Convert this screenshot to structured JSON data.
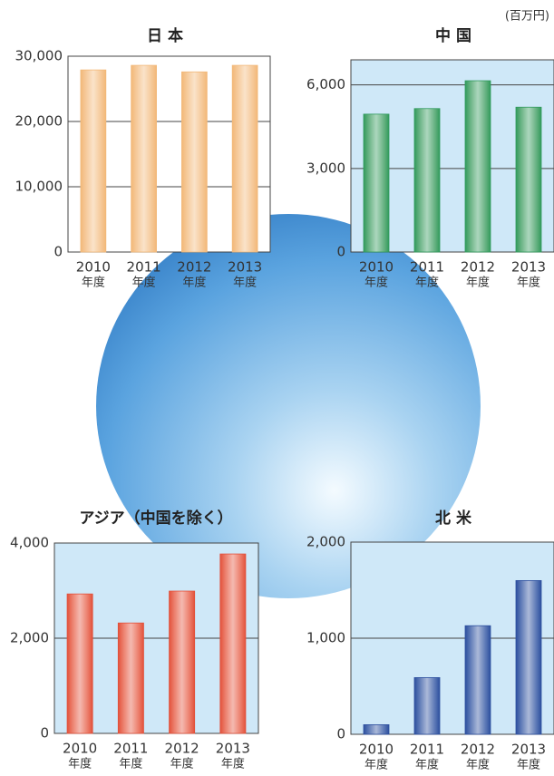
{
  "unit": "(百万円)",
  "chart_data": [
    {
      "type": "bar",
      "title": "日 本",
      "categories": [
        "2010",
        "2011",
        "2012",
        "2013"
      ],
      "category_suffix": "年度",
      "values": [
        27900,
        28600,
        27600,
        28600
      ],
      "color": "#f2b878",
      "plot_background": "#ffffff",
      "ylim": [
        0,
        30000
      ],
      "yticks": [
        0,
        {
          "value": 10000,
          "label": "10,000"
        },
        {
          "value": 20000,
          "label": "20,000"
        },
        {
          "value": 30000,
          "label": "30,000"
        }
      ],
      "grid": true
    },
    {
      "type": "bar",
      "title": "中 国",
      "categories": [
        "2010",
        "2011",
        "2012",
        "2013"
      ],
      "category_suffix": "年度",
      "values": [
        4950,
        5150,
        6150,
        5200
      ],
      "color": "#2f9a5c",
      "plot_background": "#cfe8f8",
      "ylim": [
        0,
        6900
      ],
      "yticks": [
        0,
        {
          "value": 3000,
          "label": "3,000"
        },
        {
          "value": 6000,
          "label": "6,000"
        }
      ],
      "grid": true
    },
    {
      "type": "bar",
      "title": "アジア（中国を除く）",
      "categories": [
        "2010",
        "2011",
        "2012",
        "2013"
      ],
      "category_suffix": "年度",
      "values": [
        2930,
        2320,
        2990,
        3770
      ],
      "color": "#e2503a",
      "plot_background": "#cfe8f8",
      "ylim": [
        0,
        4000
      ],
      "yticks": [
        0,
        {
          "value": 2000,
          "label": "2,000"
        },
        {
          "value": 4000,
          "label": "4,000"
        }
      ],
      "grid": true
    },
    {
      "type": "bar",
      "title": "北 米",
      "categories": [
        "2010",
        "2011",
        "2012",
        "2013"
      ],
      "category_suffix": "年度",
      "values": [
        100,
        590,
        1130,
        1600
      ],
      "color": "#2d4f9e",
      "plot_background": "#cfe8f8",
      "ylim": [
        0,
        2000
      ],
      "yticks": [
        0,
        {
          "value": 1000,
          "label": "1,000"
        },
        {
          "value": 2000,
          "label": "2,000"
        }
      ],
      "grid": true
    }
  ]
}
